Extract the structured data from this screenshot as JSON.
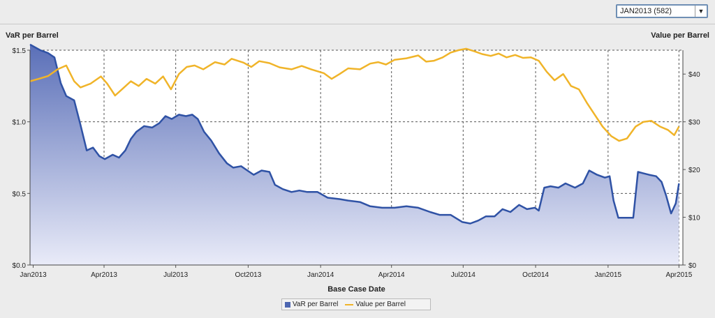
{
  "selector": {
    "value": "JAN2013 (582)",
    "arrow": "▼"
  },
  "colors": {
    "var_line": "#2f52a5",
    "var_fill_top": "#5a6fb8",
    "var_fill_bottom": "#e9ebf8",
    "value_line": "#f0b429",
    "grid": "#555555",
    "plot_bg": "#ffffff"
  },
  "chart_data": {
    "type": "area",
    "title": "",
    "xlabel": "Base Case Date",
    "ylabel_left": "VaR per Barrel",
    "ylabel_right": "Value per Barrel",
    "x_ticks": [
      "Jan2013",
      "Apr2013",
      "Jul2013",
      "Oct2013",
      "Jan2014",
      "Apr2014",
      "Jul2014",
      "Oct2014",
      "Jan2015",
      "Apr2015"
    ],
    "y_left_ticks": [
      "$0.0",
      "$0.5",
      "$1.0",
      "$1.5"
    ],
    "y_left_range": [
      0,
      1.5
    ],
    "y_right_ticks": [
      "$0",
      "$10",
      "$20",
      "$30",
      "$40"
    ],
    "y_right_range": [
      0,
      45
    ],
    "grid": true,
    "legend_position": "bottom-center",
    "x_range": [
      "2012-12-28",
      "2015-04-06"
    ],
    "series": [
      {
        "name": "VaR per Barrel",
        "axis": "left",
        "style": "area",
        "points": [
          [
            "2012-12-28",
            1.54
          ],
          [
            "2013-01-10",
            1.5
          ],
          [
            "2013-01-20",
            1.48
          ],
          [
            "2013-01-28",
            1.45
          ],
          [
            "2013-02-05",
            1.27
          ],
          [
            "2013-02-12",
            1.18
          ],
          [
            "2013-02-22",
            1.15
          ],
          [
            "2013-03-02",
            0.98
          ],
          [
            "2013-03-10",
            0.8
          ],
          [
            "2013-03-18",
            0.82
          ],
          [
            "2013-03-26",
            0.76
          ],
          [
            "2013-04-02",
            0.74
          ],
          [
            "2013-04-12",
            0.77
          ],
          [
            "2013-04-20",
            0.75
          ],
          [
            "2013-04-28",
            0.8
          ],
          [
            "2013-05-05",
            0.88
          ],
          [
            "2013-05-12",
            0.93
          ],
          [
            "2013-05-22",
            0.97
          ],
          [
            "2013-06-01",
            0.96
          ],
          [
            "2013-06-10",
            0.99
          ],
          [
            "2013-06-18",
            1.04
          ],
          [
            "2013-06-26",
            1.02
          ],
          [
            "2013-07-05",
            1.05
          ],
          [
            "2013-07-14",
            1.04
          ],
          [
            "2013-07-22",
            1.05
          ],
          [
            "2013-07-29",
            1.02
          ],
          [
            "2013-08-06",
            0.93
          ],
          [
            "2013-08-15",
            0.87
          ],
          [
            "2013-08-25",
            0.78
          ],
          [
            "2013-09-04",
            0.71
          ],
          [
            "2013-09-12",
            0.68
          ],
          [
            "2013-09-22",
            0.69
          ],
          [
            "2013-09-30",
            0.66
          ],
          [
            "2013-10-08",
            0.63
          ],
          [
            "2013-10-18",
            0.66
          ],
          [
            "2013-10-28",
            0.65
          ],
          [
            "2013-11-04",
            0.56
          ],
          [
            "2013-11-14",
            0.53
          ],
          [
            "2013-11-25",
            0.51
          ],
          [
            "2013-12-05",
            0.52
          ],
          [
            "2013-12-15",
            0.51
          ],
          [
            "2013-12-28",
            0.51
          ],
          [
            "2014-01-10",
            0.47
          ],
          [
            "2014-01-25",
            0.46
          ],
          [
            "2014-02-05",
            0.45
          ],
          [
            "2014-02-20",
            0.44
          ],
          [
            "2014-03-05",
            0.41
          ],
          [
            "2014-03-20",
            0.4
          ],
          [
            "2014-04-05",
            0.4
          ],
          [
            "2014-04-20",
            0.41
          ],
          [
            "2014-05-05",
            0.4
          ],
          [
            "2014-05-20",
            0.37
          ],
          [
            "2014-06-01",
            0.35
          ],
          [
            "2014-06-15",
            0.35
          ],
          [
            "2014-06-30",
            0.3
          ],
          [
            "2014-07-10",
            0.29
          ],
          [
            "2014-07-20",
            0.31
          ],
          [
            "2014-07-30",
            0.34
          ],
          [
            "2014-08-10",
            0.34
          ],
          [
            "2014-08-20",
            0.39
          ],
          [
            "2014-08-30",
            0.37
          ],
          [
            "2014-09-10",
            0.42
          ],
          [
            "2014-09-20",
            0.39
          ],
          [
            "2014-09-30",
            0.4
          ],
          [
            "2014-10-05",
            0.38
          ],
          [
            "2014-10-12",
            0.54
          ],
          [
            "2014-10-20",
            0.55
          ],
          [
            "2014-10-30",
            0.54
          ],
          [
            "2014-11-08",
            0.57
          ],
          [
            "2014-11-20",
            0.54
          ],
          [
            "2014-11-30",
            0.57
          ],
          [
            "2014-12-08",
            0.66
          ],
          [
            "2014-12-18",
            0.63
          ],
          [
            "2014-12-28",
            0.61
          ],
          [
            "2015-01-03",
            0.62
          ],
          [
            "2015-01-08",
            0.45
          ],
          [
            "2015-01-14",
            0.33
          ],
          [
            "2015-01-24",
            0.33
          ],
          [
            "2015-02-02",
            0.33
          ],
          [
            "2015-02-08",
            0.65
          ],
          [
            "2015-02-15",
            0.64
          ],
          [
            "2015-02-22",
            0.63
          ],
          [
            "2015-03-03",
            0.62
          ],
          [
            "2015-03-10",
            0.58
          ],
          [
            "2015-03-16",
            0.48
          ],
          [
            "2015-03-22",
            0.36
          ],
          [
            "2015-03-28",
            0.43
          ],
          [
            "2015-04-01",
            0.57
          ]
        ]
      },
      {
        "name": "Value per Barrel",
        "axis": "right",
        "style": "line",
        "points": [
          [
            "2012-12-28",
            38.5
          ],
          [
            "2013-01-08",
            39.0
          ],
          [
            "2013-01-20",
            39.6
          ],
          [
            "2013-02-01",
            41.0
          ],
          [
            "2013-02-12",
            41.8
          ],
          [
            "2013-02-22",
            38.5
          ],
          [
            "2013-03-02",
            37.2
          ],
          [
            "2013-03-15",
            38.0
          ],
          [
            "2013-03-28",
            39.5
          ],
          [
            "2013-04-05",
            38.0
          ],
          [
            "2013-04-15",
            35.5
          ],
          [
            "2013-04-25",
            37.0
          ],
          [
            "2013-05-05",
            38.5
          ],
          [
            "2013-05-15",
            37.5
          ],
          [
            "2013-05-25",
            39.0
          ],
          [
            "2013-06-05",
            38.0
          ],
          [
            "2013-06-15",
            39.5
          ],
          [
            "2013-06-25",
            36.8
          ],
          [
            "2013-07-05",
            40.0
          ],
          [
            "2013-07-15",
            41.5
          ],
          [
            "2013-07-25",
            41.8
          ],
          [
            "2013-08-05",
            41.0
          ],
          [
            "2013-08-20",
            42.5
          ],
          [
            "2013-09-01",
            42.0
          ],
          [
            "2013-09-10",
            43.2
          ],
          [
            "2013-09-25",
            42.4
          ],
          [
            "2013-10-05",
            41.5
          ],
          [
            "2013-10-15",
            42.7
          ],
          [
            "2013-10-28",
            42.3
          ],
          [
            "2013-11-10",
            41.4
          ],
          [
            "2013-11-25",
            41.0
          ],
          [
            "2013-12-08",
            41.7
          ],
          [
            "2013-12-20",
            41.0
          ],
          [
            "2014-01-05",
            40.2
          ],
          [
            "2014-01-15",
            39.0
          ],
          [
            "2014-01-25",
            40.0
          ],
          [
            "2014-02-05",
            41.2
          ],
          [
            "2014-02-20",
            41.0
          ],
          [
            "2014-03-05",
            42.2
          ],
          [
            "2014-03-15",
            42.5
          ],
          [
            "2014-03-25",
            42.0
          ],
          [
            "2014-04-05",
            43.0
          ],
          [
            "2014-04-20",
            43.3
          ],
          [
            "2014-05-05",
            43.9
          ],
          [
            "2014-05-15",
            42.6
          ],
          [
            "2014-05-25",
            42.8
          ],
          [
            "2014-06-05",
            43.5
          ],
          [
            "2014-06-15",
            44.5
          ],
          [
            "2014-06-25",
            45.0
          ],
          [
            "2014-07-05",
            45.3
          ],
          [
            "2014-07-15",
            44.8
          ],
          [
            "2014-07-25",
            44.2
          ],
          [
            "2014-08-05",
            43.8
          ],
          [
            "2014-08-15",
            44.3
          ],
          [
            "2014-08-25",
            43.5
          ],
          [
            "2014-09-05",
            44.0
          ],
          [
            "2014-09-15",
            43.4
          ],
          [
            "2014-09-25",
            43.5
          ],
          [
            "2014-10-05",
            42.8
          ],
          [
            "2014-10-15",
            40.5
          ],
          [
            "2014-10-25",
            38.7
          ],
          [
            "2014-11-05",
            40.0
          ],
          [
            "2014-11-15",
            37.5
          ],
          [
            "2014-11-25",
            36.8
          ],
          [
            "2014-12-05",
            34.0
          ],
          [
            "2014-12-15",
            31.5
          ],
          [
            "2014-12-25",
            29.0
          ],
          [
            "2015-01-05",
            27.0
          ],
          [
            "2015-01-15",
            26.0
          ],
          [
            "2015-01-25",
            26.5
          ],
          [
            "2015-02-05",
            29.0
          ],
          [
            "2015-02-15",
            30.0
          ],
          [
            "2015-02-25",
            30.2
          ],
          [
            "2015-03-08",
            29.0
          ],
          [
            "2015-03-18",
            28.3
          ],
          [
            "2015-03-26",
            27.2
          ],
          [
            "2015-04-01",
            29.0
          ]
        ]
      }
    ]
  },
  "legend": {
    "item1": "VaR per Barrel",
    "item2": "Value per Barrel"
  }
}
